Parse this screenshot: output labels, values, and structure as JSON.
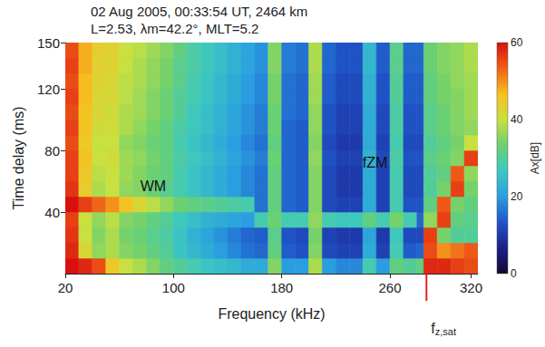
{
  "chart_data": {
    "type": "heatmap",
    "title": "02 Aug 2005, 00:33:54 UT, 2464 km",
    "subtitle": "L=2.53, λm=42.2°, MLT=5.2",
    "xlabel": "Frequency (kHz)",
    "ylabel": "Time delay (ms)",
    "xlim": [
      20,
      325
    ],
    "xticks": [
      20,
      100,
      180,
      260,
      320
    ],
    "ylim": [
      0,
      150
    ],
    "yticks": [
      40,
      80,
      120,
      150
    ],
    "grid": false,
    "heatmap": {
      "x_edges": [
        20,
        30,
        40,
        50,
        60,
        70,
        80,
        90,
        100,
        110,
        120,
        130,
        140,
        150,
        160,
        170,
        180,
        190,
        200,
        210,
        220,
        230,
        240,
        250,
        260,
        270,
        280,
        285,
        295,
        305,
        315,
        325
      ],
      "y_edges": [
        0,
        10,
        20,
        30,
        40,
        50,
        60,
        70,
        80,
        90,
        100,
        110,
        120,
        130,
        140,
        150
      ],
      "cells": [
        [
          60,
          58,
          55,
          45,
          40,
          38,
          35,
          32,
          30,
          28,
          26,
          25,
          24,
          22,
          22,
          35,
          20,
          20,
          38,
          20,
          18,
          18,
          28,
          20,
          32,
          30,
          32,
          58,
          58,
          56,
          55
        ],
        [
          58,
          42,
          36,
          38,
          35,
          34,
          32,
          30,
          26,
          24,
          22,
          20,
          18,
          16,
          15,
          32,
          14,
          13,
          35,
          12,
          11,
          11,
          22,
          11,
          28,
          14,
          15,
          55,
          50,
          52,
          54
        ],
        [
          57,
          40,
          35,
          38,
          34,
          33,
          31,
          29,
          26,
          23,
          21,
          19,
          17,
          15,
          14,
          31,
          13,
          12,
          34,
          11,
          10,
          10,
          21,
          10,
          27,
          12,
          12,
          56,
          34,
          30,
          30
        ],
        [
          56,
          40,
          36,
          39,
          35,
          34,
          32,
          30,
          27,
          25,
          23,
          22,
          21,
          20,
          28,
          33,
          28,
          28,
          36,
          28,
          27,
          27,
          32,
          28,
          34,
          28,
          15,
          36,
          56,
          32,
          31
        ],
        [
          60,
          56,
          53,
          50,
          46,
          42,
          39,
          36,
          33,
          32,
          31,
          30,
          29,
          28,
          16,
          32,
          15,
          14,
          35,
          12,
          11,
          11,
          22,
          11,
          28,
          13,
          13,
          32,
          54,
          34,
          32
        ],
        [
          57,
          44,
          38,
          40,
          36,
          35,
          33,
          31,
          28,
          26,
          24,
          22,
          20,
          18,
          16,
          32,
          15,
          14,
          35,
          12,
          10,
          10,
          22,
          11,
          28,
          12,
          12,
          30,
          34,
          56,
          34
        ],
        [
          56,
          45,
          39,
          40,
          37,
          35,
          33,
          32,
          28,
          26,
          24,
          22,
          20,
          18,
          16,
          32,
          15,
          14,
          35,
          12,
          10,
          10,
          22,
          11,
          28,
          12,
          12,
          30,
          32,
          54,
          36
        ],
        [
          56,
          46,
          40,
          41,
          37,
          36,
          34,
          32,
          29,
          27,
          25,
          23,
          21,
          19,
          17,
          33,
          15,
          14,
          36,
          13,
          11,
          11,
          23,
          12,
          29,
          13,
          13,
          31,
          33,
          35,
          56
        ],
        [
          55,
          45,
          40,
          40,
          36,
          35,
          33,
          32,
          28,
          26,
          24,
          22,
          20,
          18,
          16,
          32,
          15,
          14,
          35,
          12,
          10,
          10,
          22,
          11,
          28,
          12,
          12,
          30,
          32,
          34,
          40
        ],
        [
          56,
          46,
          41,
          41,
          38,
          36,
          34,
          32,
          29,
          27,
          25,
          23,
          21,
          19,
          17,
          33,
          15,
          14,
          36,
          13,
          11,
          11,
          22,
          12,
          29,
          13,
          13,
          31,
          33,
          35,
          36
        ],
        [
          55,
          46,
          42,
          41,
          38,
          37,
          35,
          33,
          30,
          27,
          25,
          23,
          21,
          19,
          17,
          33,
          16,
          15,
          36,
          13,
          11,
          11,
          22,
          12,
          29,
          13,
          13,
          31,
          33,
          35,
          37
        ],
        [
          56,
          47,
          42,
          42,
          39,
          37,
          35,
          33,
          30,
          28,
          26,
          24,
          22,
          20,
          18,
          34,
          16,
          15,
          37,
          14,
          12,
          12,
          23,
          13,
          30,
          14,
          14,
          32,
          34,
          35,
          37
        ],
        [
          55,
          47,
          43,
          42,
          39,
          38,
          36,
          34,
          31,
          28,
          26,
          24,
          22,
          20,
          18,
          34,
          16,
          15,
          37,
          14,
          12,
          12,
          23,
          13,
          30,
          14,
          14,
          32,
          34,
          36,
          37
        ],
        [
          56,
          48,
          43,
          43,
          40,
          38,
          36,
          34,
          31,
          29,
          27,
          25,
          23,
          21,
          19,
          35,
          17,
          16,
          38,
          15,
          13,
          13,
          24,
          14,
          31,
          15,
          15,
          33,
          35,
          36,
          38
        ],
        [
          55,
          48,
          44,
          43,
          40,
          39,
          37,
          35,
          32,
          29,
          27,
          25,
          23,
          21,
          19,
          35,
          17,
          16,
          38,
          15,
          13,
          13,
          24,
          14,
          31,
          15,
          15,
          33,
          35,
          36,
          38
        ]
      ]
    },
    "colorbar": {
      "range": [
        0,
        60
      ],
      "ticks": [
        0,
        20,
        40,
        60
      ],
      "label": "Ax[dB]"
    },
    "annotations": [
      {
        "text": "WM",
        "x": 85,
        "y": 57
      },
      {
        "text": "fZM",
        "x": 249,
        "y": 72
      }
    ],
    "marker": {
      "text": "f",
      "subscript": "z,sat",
      "x": 287
    }
  }
}
